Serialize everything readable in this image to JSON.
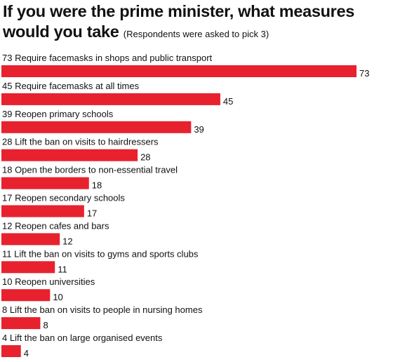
{
  "title": "If you were the prime minister, what measures would you take",
  "subtitle": "(Respondents were asked to pick 3)",
  "colors": {
    "bar": "#e8212e",
    "text": "#111111",
    "background": "#ffffff"
  },
  "chart_data": {
    "type": "bar",
    "orientation": "horizontal",
    "title": "If you were the prime minister, what measures would you take",
    "subtitle": "(Respondents were asked to pick 3)",
    "xlabel": "",
    "ylabel": "",
    "xlim": [
      0,
      73
    ],
    "grid": false,
    "legend": "none",
    "categories": [
      "Require facemasks in shops and public transport",
      "Require facemasks at all times",
      "Reopen primary schools",
      "Lift the ban on visits to hairdressers",
      "Open the borders to non-essential travel",
      "Reopen secondary schools",
      "Reopen cafes and bars",
      "Lift the ban on visits to gyms and sports clubs",
      "Reopen universities",
      "Lift the ban on visits to people in nursing homes",
      "Lift the ban on large organised events"
    ],
    "values": [
      73,
      45,
      39,
      28,
      18,
      17,
      12,
      11,
      10,
      8,
      4
    ],
    "category_labels": [
      "73  Require facemasks in shops and public transport",
      "45 Require facemasks at all times",
      "39  Reopen primary schools",
      "28  Lift the ban on visits to hairdressers",
      "18  Open the borders to non-essential travel",
      "17 Reopen secondary schools",
      "12 Reopen cafes and bars",
      "11 Lift the ban on visits to gyms and sports clubs",
      "10 Reopen universities",
      "8   Lift the ban on visits to people in nursing homes",
      "4   Lift the ban on large organised events"
    ],
    "value_labels": [
      "73",
      "45",
      "39",
      "28",
      "18",
      "17",
      "12",
      "11",
      "10",
      "8",
      "4"
    ]
  }
}
